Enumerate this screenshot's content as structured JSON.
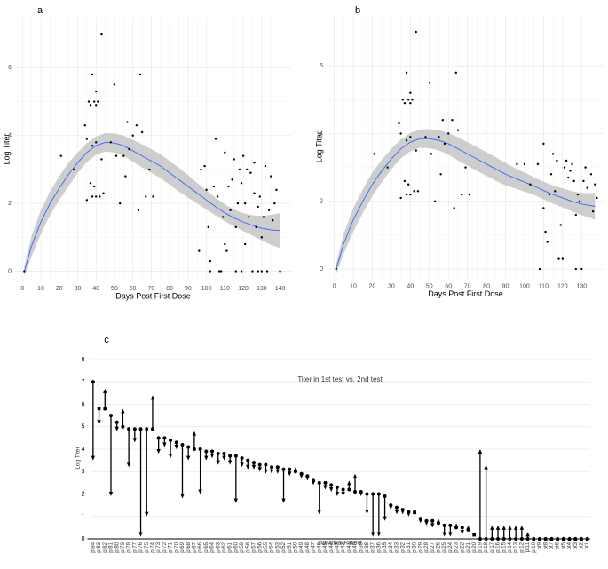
{
  "chart_data": [
    {
      "type": "scatter",
      "panel_label": "a",
      "xlabel": "Days Post First Dose",
      "ylabel": "Log Titer",
      "x": [
        1,
        21,
        28,
        34,
        35,
        35,
        36,
        37,
        37,
        38,
        38,
        38,
        39,
        39,
        40,
        40,
        40,
        40,
        41,
        42,
        43,
        43,
        44,
        48,
        50,
        51,
        53,
        55,
        56,
        57,
        58,
        60,
        62,
        63,
        64,
        65,
        67,
        69,
        71,
        96,
        97,
        99,
        100,
        101,
        102,
        102,
        104,
        105,
        106,
        107,
        108,
        109,
        110,
        110,
        111,
        112,
        113,
        114,
        115,
        116,
        116,
        117,
        118,
        119,
        119,
        120,
        121,
        121,
        122,
        123,
        124,
        125,
        126,
        126,
        127,
        128,
        128,
        129,
        130,
        130,
        131,
        132,
        133,
        134,
        135,
        136,
        137,
        138,
        140
      ],
      "y": [
        0,
        3.4,
        3.0,
        4.3,
        3.9,
        2.1,
        5.0,
        4.9,
        2.6,
        5.8,
        3.7,
        2.2,
        5.0,
        2.5,
        5.3,
        4.9,
        3.8,
        2.2,
        5.0,
        2.2,
        7.0,
        3.3,
        2.3,
        3.8,
        5.5,
        3.4,
        2.0,
        3.4,
        2.8,
        4.4,
        3.6,
        4.0,
        4.3,
        1.8,
        5.8,
        4.1,
        2.2,
        3.0,
        2.2,
        0.6,
        3.0,
        3.1,
        2.4,
        1.3,
        0,
        0.3,
        2.5,
        3.9,
        2.2,
        0,
        0,
        1.6,
        3.5,
        0.8,
        0.6,
        2.5,
        1.8,
        2.7,
        3.3,
        0,
        1.3,
        2.0,
        3.0,
        2.6,
        0,
        3.4,
        0.8,
        2.0,
        3.0,
        1.6,
        2.9,
        0,
        3.2,
        2.3,
        1.3,
        0,
        1.9,
        2.2,
        1.0,
        0,
        1.6,
        3.1,
        0,
        1.8,
        2.8,
        1.5,
        2.0,
        2.4,
        0
      ],
      "smooth": {
        "x": [
          1,
          5,
          10,
          15,
          20,
          25,
          30,
          35,
          40,
          45,
          50,
          55,
          60,
          65,
          70,
          75,
          80,
          85,
          90,
          95,
          100,
          105,
          110,
          115,
          120,
          125,
          130,
          135,
          140
        ],
        "values": [
          0,
          0.75,
          1.45,
          2.0,
          2.45,
          2.85,
          3.2,
          3.5,
          3.7,
          3.8,
          3.78,
          3.7,
          3.55,
          3.4,
          3.25,
          3.1,
          2.9,
          2.7,
          2.5,
          2.3,
          2.1,
          1.9,
          1.72,
          1.57,
          1.45,
          1.35,
          1.27,
          1.22,
          1.2
        ],
        "lower": [
          -0.15,
          0.45,
          1.1,
          1.65,
          2.1,
          2.5,
          2.9,
          3.22,
          3.43,
          3.53,
          3.5,
          3.4,
          3.23,
          3.06,
          2.9,
          2.75,
          2.55,
          2.35,
          2.17,
          2.0,
          1.82,
          1.64,
          1.47,
          1.32,
          1.19,
          1.05,
          0.91,
          0.78,
          0.68
        ],
        "upper": [
          0.15,
          1.05,
          1.8,
          2.35,
          2.8,
          3.2,
          3.5,
          3.78,
          3.97,
          4.07,
          4.06,
          4.0,
          3.87,
          3.74,
          3.6,
          3.45,
          3.25,
          3.05,
          2.83,
          2.6,
          2.38,
          2.16,
          1.97,
          1.82,
          1.71,
          1.65,
          1.63,
          1.66,
          1.72
        ]
      },
      "xlim": [
        -4,
        146
      ],
      "ylim": [
        -0.3,
        7.5
      ],
      "xticks": [
        0,
        10,
        20,
        30,
        40,
        50,
        60,
        70,
        80,
        90,
        100,
        110,
        120,
        130,
        140
      ],
      "yticks": [
        0,
        2,
        4,
        6
      ],
      "color": "#000000",
      "line_color": "#3366ff",
      "band_color": "#bdbdbd",
      "grid": true
    },
    {
      "type": "scatter",
      "panel_label": "b",
      "xlabel": "Days Post First Dose",
      "ylabel": "Log Titer",
      "x": [
        1,
        21,
        28,
        34,
        35,
        35,
        36,
        37,
        37,
        38,
        38,
        38,
        39,
        39,
        40,
        40,
        40,
        40,
        41,
        42,
        43,
        43,
        44,
        48,
        50,
        51,
        53,
        55,
        56,
        57,
        58,
        60,
        62,
        63,
        64,
        65,
        67,
        69,
        71,
        96,
        100,
        103,
        107,
        108,
        110,
        110,
        111,
        112,
        113,
        114,
        115,
        116,
        117,
        118,
        119,
        120,
        121,
        122,
        123,
        124,
        125,
        126,
        127,
        127,
        128,
        129,
        130,
        131,
        132,
        133,
        135,
        136,
        137,
        138
      ],
      "y": [
        0,
        3.4,
        3.0,
        4.3,
        4.0,
        2.1,
        5.0,
        4.9,
        2.6,
        5.8,
        3.8,
        2.2,
        5.0,
        2.5,
        5.2,
        4.9,
        3.9,
        2.2,
        5.0,
        2.3,
        7.0,
        3.5,
        2.3,
        3.9,
        5.5,
        3.4,
        2.0,
        3.9,
        2.8,
        4.4,
        3.7,
        4.0,
        4.4,
        1.8,
        5.8,
        4.1,
        2.2,
        3.0,
        2.2,
        3.1,
        3.1,
        2.5,
        3.1,
        0,
        3.7,
        1.8,
        1.1,
        0.8,
        2.2,
        2.8,
        3.4,
        2.3,
        3.2,
        0.3,
        1.3,
        0.3,
        3.0,
        3.2,
        2.7,
        2.9,
        3.1,
        2.6,
        1.6,
        0,
        2.2,
        2.0,
        0,
        2.6,
        3.0,
        2.4,
        2.8,
        1.7,
        2.5,
        2.1
      ],
      "smooth": {
        "x": [
          1,
          5,
          10,
          15,
          20,
          25,
          30,
          35,
          40,
          45,
          50,
          55,
          60,
          65,
          70,
          75,
          80,
          85,
          90,
          95,
          100,
          105,
          110,
          115,
          120,
          125,
          130,
          135,
          137
        ],
        "values": [
          0,
          0.75,
          1.45,
          2.0,
          2.5,
          2.9,
          3.25,
          3.55,
          3.75,
          3.85,
          3.85,
          3.8,
          3.7,
          3.55,
          3.4,
          3.25,
          3.1,
          2.95,
          2.8,
          2.68,
          2.57,
          2.45,
          2.32,
          2.2,
          2.1,
          2.0,
          1.92,
          1.87,
          1.85
        ],
        "lower": [
          -0.15,
          0.45,
          1.1,
          1.65,
          2.15,
          2.57,
          2.95,
          3.27,
          3.48,
          3.58,
          3.57,
          3.5,
          3.38,
          3.21,
          3.05,
          2.9,
          2.75,
          2.6,
          2.47,
          2.38,
          2.29,
          2.19,
          2.06,
          1.93,
          1.82,
          1.7,
          1.59,
          1.5,
          1.45
        ],
        "upper": [
          0.15,
          1.05,
          1.8,
          2.35,
          2.85,
          3.23,
          3.55,
          3.83,
          4.02,
          4.12,
          4.13,
          4.1,
          4.02,
          3.89,
          3.75,
          3.6,
          3.45,
          3.3,
          3.13,
          2.98,
          2.85,
          2.71,
          2.58,
          2.47,
          2.38,
          2.3,
          2.25,
          2.24,
          2.25
        ]
      },
      "xlim": [
        -4,
        142
      ],
      "ylim": [
        -0.3,
        7.5
      ],
      "xticks": [
        0,
        10,
        20,
        30,
        40,
        50,
        60,
        70,
        80,
        90,
        100,
        110,
        120,
        130
      ],
      "yticks": [
        0,
        2,
        4,
        6
      ],
      "color": "#000000",
      "line_color": "#3366ff",
      "band_color": "#bdbdbd",
      "grid": true
    },
    {
      "type": "arrow",
      "panel_label": "c",
      "title": "Titer in 1st test vs. 2nd test",
      "xlabel": "Individual Patient",
      "ylabel": "Log Titer",
      "categories": [
        "pt84",
        "pt83",
        "pt82",
        "pt81",
        "pt80",
        "pt79",
        "pt78",
        "pt77",
        "pt76",
        "pt75",
        "pt74",
        "pt73",
        "pt72",
        "pt71",
        "pt70",
        "pt69",
        "pt68",
        "pt67",
        "pt66",
        "pt65",
        "pt64",
        "pt63",
        "pt62",
        "pt61",
        "pt60",
        "pt59",
        "pt58",
        "pt57",
        "pt56",
        "pt55",
        "pt54",
        "pt53",
        "pt52",
        "pt51",
        "pt50",
        "pt49",
        "pt48",
        "pt47",
        "pt46",
        "pt45",
        "pt44",
        "pt43",
        "pt42",
        "pt41",
        "pt40",
        "pt39",
        "pt38",
        "pt37",
        "pt36",
        "pt35",
        "pt34",
        "pt33",
        "pt32",
        "pt31",
        "pt30",
        "pt29",
        "pt28",
        "pt27",
        "pt26",
        "pt25",
        "pt24",
        "pt23",
        "pt22",
        "pt21",
        "pt20",
        "pt19",
        "pt18",
        "pt17",
        "pt16",
        "pt15",
        "pt14",
        "pt13",
        "pt12",
        "pt11",
        "pt10",
        "pt9",
        "pt8",
        "pt7",
        "pt6",
        "pt5",
        "pt4",
        "pt3",
        "pt2",
        "pt1"
      ],
      "series": [
        {
          "values": [
            7.0,
            5.8,
            5.8,
            5.5,
            5.2,
            5.0,
            4.9,
            4.9,
            4.9,
            4.9,
            4.9,
            4.5,
            4.5,
            4.4,
            4.3,
            4.2,
            4.1,
            4.0,
            4.0,
            3.9,
            3.9,
            3.8,
            3.8,
            3.7,
            3.7,
            3.6,
            3.5,
            3.4,
            3.3,
            3.3,
            3.2,
            3.2,
            3.1,
            3.1,
            3.0,
            2.9,
            2.8,
            2.6,
            2.5,
            2.5,
            2.4,
            2.3,
            2.2,
            2.2,
            2.1,
            2.1,
            2.0,
            2.0,
            2.0,
            1.9,
            1.5,
            1.4,
            1.3,
            1.2,
            1.2,
            0.9,
            0.8,
            0.8,
            0.7,
            0.6,
            0.6,
            0.5,
            0.5,
            0.4,
            0.2,
            0,
            0,
            0,
            0,
            0,
            0,
            0,
            0,
            0,
            0,
            0,
            0,
            0,
            0,
            0,
            0,
            0,
            0,
            0
          ]
        },
        {
          "values": [
            3.5,
            5.1,
            6.7,
            1.9,
            4.8,
            5.8,
            3.2,
            4.3,
            0.1,
            1.0,
            6.4,
            3.8,
            4.1,
            3.6,
            4.0,
            1.8,
            3.5,
            4.8,
            2.0,
            3.5,
            3.6,
            3.3,
            3.5,
            3.3,
            1.6,
            3.2,
            3.1,
            3.1,
            3.0,
            2.9,
            2.9,
            2.9,
            1.6,
            2.8,
            3.2,
            2.7,
            2.6,
            2.4,
            1.1,
            2.2,
            2.1,
            1.9,
            1.9,
            2.6,
            2.9,
            1.9,
            1.1,
            0.1,
            0.1,
            0.8,
            1.3,
            1.1,
            1.1,
            1.0,
            1.3,
            0.7,
            0.6,
            0.5,
            0.9,
            0.1,
            0.1,
            0.7,
            0.2,
            0.6,
            0.3,
            4.0,
            3.3,
            0.6,
            0.6,
            0.6,
            0.6,
            0.6,
            0.6,
            0.3,
            0.1,
            0.1,
            0.1,
            0.1,
            0.1,
            0.1,
            0.1,
            0.1,
            0.1,
            0.1
          ]
        }
      ],
      "ylim": [
        0,
        8
      ],
      "yticks": [
        0,
        1,
        2,
        3,
        4,
        5,
        6,
        7,
        8
      ],
      "color": "#000000",
      "grid": true
    }
  ]
}
